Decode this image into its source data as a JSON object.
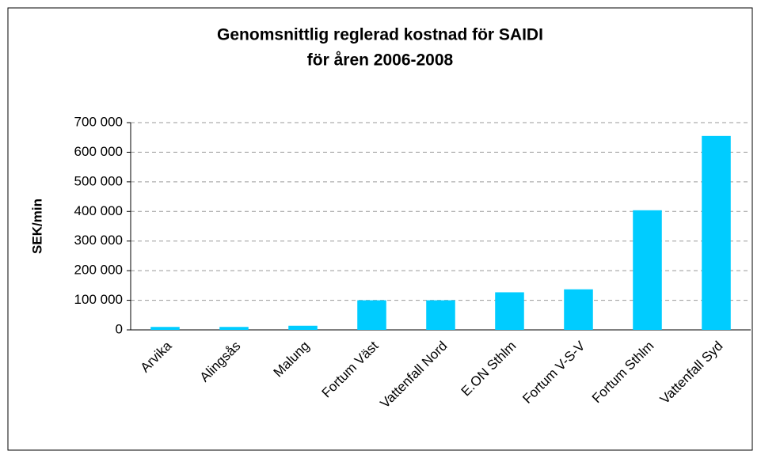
{
  "chart_data": {
    "type": "bar",
    "title": [
      "Genomsnittlig reglerad kostnad för SAIDI",
      "för åren 2006-2008"
    ],
    "y_label": "SEK/min",
    "categories": [
      "Arvika",
      "Alingsås",
      "Malung",
      "Fortum Väst",
      "Vattenfall Nord",
      "E.ON Sthlm",
      "Fortum V-S-V",
      "Fortum Sthlm",
      "Vattenfall Syd"
    ],
    "values": [
      10000,
      10000,
      14000,
      100000,
      100000,
      127000,
      137000,
      404000,
      655000
    ],
    "color": "#00ccff",
    "ylim": [
      0,
      700000
    ],
    "yticks": [
      0,
      {
        "value": 100000,
        "label": "100 000"
      },
      {
        "value": 200000,
        "label": "200 000"
      },
      {
        "value": 300000,
        "label": "300 000"
      },
      {
        "value": 400000,
        "label": "400 000"
      },
      {
        "value": 500000,
        "label": "500 000"
      },
      {
        "value": 600000,
        "label": "600 000"
      },
      {
        "value": 700000,
        "label": "700 000"
      }
    ],
    "grid": true
  }
}
